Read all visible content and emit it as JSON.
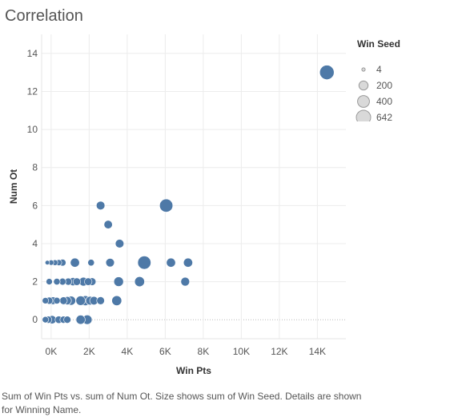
{
  "title": "Correlation",
  "caption": "Sum of Win Pts vs. sum of Num Ot.  Size shows sum of Win Seed. Details are shown for Winning Name.",
  "chart_data": {
    "type": "scatter",
    "title": "Correlation",
    "xlabel": "Win Pts",
    "ylabel": "Num Ot",
    "xlim": [
      -500,
      15500
    ],
    "ylim": [
      -1,
      15
    ],
    "x_ticks": [
      0,
      2000,
      4000,
      6000,
      8000,
      10000,
      12000,
      14000
    ],
    "x_tick_labels": [
      "0K",
      "2K",
      "4K",
      "6K",
      "8K",
      "10K",
      "12K",
      "14K"
    ],
    "y_ticks": [
      0,
      2,
      4,
      6,
      8,
      10,
      12,
      14
    ],
    "y_tick_labels": [
      "0",
      "2",
      "4",
      "6",
      "8",
      "10",
      "12",
      "14"
    ],
    "grid": true,
    "color": "#4e79a7",
    "size_legend": {
      "title": "Win Seed",
      "placement": "right",
      "entries": [
        {
          "label": "4",
          "value": 4
        },
        {
          "label": "200",
          "value": 200
        },
        {
          "label": "400",
          "value": 400
        },
        {
          "label": "642",
          "value": 642
        }
      ]
    },
    "points": [
      {
        "x": 14500,
        "y": 13,
        "size": 642
      },
      {
        "x": 6050,
        "y": 6,
        "size": 520
      },
      {
        "x": 2600,
        "y": 6,
        "size": 170
      },
      {
        "x": 3000,
        "y": 5,
        "size": 160
      },
      {
        "x": 3600,
        "y": 4,
        "size": 170
      },
      {
        "x": 4900,
        "y": 3,
        "size": 520
      },
      {
        "x": 1250,
        "y": 3,
        "size": 200
      },
      {
        "x": 3100,
        "y": 3,
        "size": 170
      },
      {
        "x": 6300,
        "y": 3,
        "size": 200
      },
      {
        "x": 7200,
        "y": 3,
        "size": 200
      },
      {
        "x": 2100,
        "y": 3,
        "size": 80
      },
      {
        "x": -200,
        "y": 3,
        "size": 20
      },
      {
        "x": 0,
        "y": 3,
        "size": 40
      },
      {
        "x": 200,
        "y": 3,
        "size": 50
      },
      {
        "x": 400,
        "y": 3,
        "size": 60
      },
      {
        "x": 600,
        "y": 3,
        "size": 90
      },
      {
        "x": 3550,
        "y": 2,
        "size": 230
      },
      {
        "x": 4650,
        "y": 2,
        "size": 250
      },
      {
        "x": 7050,
        "y": 2,
        "size": 180
      },
      {
        "x": -100,
        "y": 2,
        "size": 70
      },
      {
        "x": 300,
        "y": 2,
        "size": 80
      },
      {
        "x": 600,
        "y": 2,
        "size": 90
      },
      {
        "x": 900,
        "y": 2,
        "size": 100
      },
      {
        "x": 1150,
        "y": 2,
        "size": 150
      },
      {
        "x": 1350,
        "y": 2,
        "size": 120
      },
      {
        "x": 1700,
        "y": 2,
        "size": 180
      },
      {
        "x": 1950,
        "y": 2,
        "size": 120
      },
      {
        "x": 2150,
        "y": 2,
        "size": 130
      },
      {
        "x": 3450,
        "y": 1,
        "size": 250
      },
      {
        "x": -300,
        "y": 1,
        "size": 70
      },
      {
        "x": -100,
        "y": 1,
        "size": 100
      },
      {
        "x": 100,
        "y": 1,
        "size": 120
      },
      {
        "x": 300,
        "y": 1,
        "size": 80
      },
      {
        "x": 650,
        "y": 1,
        "size": 120
      },
      {
        "x": 850,
        "y": 1,
        "size": 150
      },
      {
        "x": 1050,
        "y": 1,
        "size": 200
      },
      {
        "x": 1550,
        "y": 1,
        "size": 220
      },
      {
        "x": 1800,
        "y": 1,
        "size": 250
      },
      {
        "x": 2050,
        "y": 1,
        "size": 180
      },
      {
        "x": 2250,
        "y": 1,
        "size": 160
      },
      {
        "x": 2600,
        "y": 1,
        "size": 130
      },
      {
        "x": -300,
        "y": 0,
        "size": 70
      },
      {
        "x": -150,
        "y": 0,
        "size": 100
      },
      {
        "x": 50,
        "y": 0,
        "size": 160
      },
      {
        "x": 400,
        "y": 0,
        "size": 110
      },
      {
        "x": 650,
        "y": 0,
        "size": 100
      },
      {
        "x": 850,
        "y": 0,
        "size": 100
      },
      {
        "x": 1550,
        "y": 0,
        "size": 200
      },
      {
        "x": 1900,
        "y": 0,
        "size": 220
      }
    ]
  }
}
